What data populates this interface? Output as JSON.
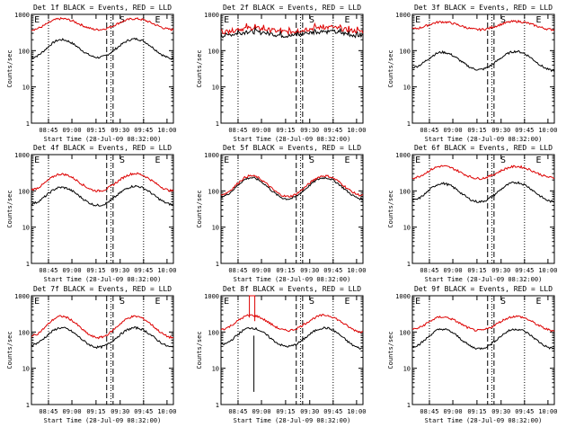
{
  "colors": {
    "events": "#000000",
    "lld": "#dd0000",
    "axis": "#000000"
  },
  "chart_data": [
    {
      "type": "line",
      "title": "Det 1f BLACK = Events, RED = LLD",
      "xlabel": "Start Time (28-Jul-09 08:32:00)",
      "ylabel": "Counts/sec",
      "yscale": "log",
      "ylim": [
        1,
        1000
      ],
      "ytick_labels": [
        "1",
        "10",
        "100",
        "1000"
      ],
      "xtick_labels": [
        "08:45",
        "09:00",
        "09:15",
        "09:30",
        "09:45",
        "10:00"
      ],
      "markers": [
        "E",
        "S",
        "E"
      ],
      "series": [
        {
          "name": "Events",
          "profile": "rise_fall",
          "values": [
            65,
            200,
            65,
            210,
            60
          ]
        },
        {
          "name": "LLD",
          "profile": "rise_fall",
          "values": [
            380,
            760,
            380,
            760,
            380
          ]
        }
      ]
    },
    {
      "type": "line",
      "title": "Det 2f BLACK = Events, RED = LLD",
      "xlabel": "Start Time (28-Jul-09 08:32:00)",
      "ylabel": "Counts/sec",
      "yscale": "log",
      "ylim": [
        1,
        1000
      ],
      "ytick_labels": [
        "1",
        "10",
        "100",
        "1000"
      ],
      "xtick_labels": [
        "08:45",
        "09:00",
        "09:15",
        "09:30",
        "09:45",
        "10:00"
      ],
      "markers": [
        "E",
        "S",
        "E"
      ],
      "series": [
        {
          "name": "Events",
          "profile": "flat_spiky",
          "values": [
            260,
            330,
            260,
            340,
            260
          ]
        },
        {
          "name": "LLD",
          "profile": "flat_spiky",
          "values": [
            330,
            420,
            330,
            440,
            340
          ]
        }
      ]
    },
    {
      "type": "line",
      "title": "Det 3f BLACK = Events, RED = LLD",
      "xlabel": "Start Time (28-Jul-09 08:32:00)",
      "ylabel": "Counts/sec",
      "yscale": "log",
      "ylim": [
        1,
        1000
      ],
      "ytick_labels": [
        "1",
        "10",
        "100",
        "1000"
      ],
      "xtick_labels": [
        "08:45",
        "09:00",
        "09:15",
        "09:30",
        "09:45",
        "10:00"
      ],
      "markers": [
        "E",
        "S",
        "E"
      ],
      "series": [
        {
          "name": "Events",
          "profile": "rise_fall",
          "values": [
            35,
            90,
            30,
            95,
            28
          ]
        },
        {
          "name": "LLD",
          "profile": "rise_fall",
          "values": [
            400,
            620,
            380,
            640,
            380
          ]
        }
      ]
    },
    {
      "type": "line",
      "title": "Det 4f BLACK = Events, RED = LLD",
      "xlabel": "Start Time (28-Jul-09 08:32:00)",
      "ylabel": "Counts/sec",
      "yscale": "log",
      "ylim": [
        1,
        1000
      ],
      "ytick_labels": [
        "1",
        "10",
        "100",
        "1000"
      ],
      "xtick_labels": [
        "08:45",
        "09:00",
        "09:15",
        "09:30",
        "09:45",
        "10:00"
      ],
      "markers": [
        "E",
        "S",
        "E"
      ],
      "series": [
        {
          "name": "Events",
          "profile": "rise_fall",
          "values": [
            45,
            125,
            40,
            135,
            42
          ]
        },
        {
          "name": "LLD",
          "profile": "rise_fall",
          "values": [
            110,
            290,
            100,
            300,
            100
          ]
        }
      ]
    },
    {
      "type": "line",
      "title": "Det 5f BLACK = Events, RED = LLD",
      "xlabel": "Start Time (28-Jul-09 08:32:00)",
      "ylabel": "Counts/sec",
      "yscale": "log",
      "ylim": [
        1,
        1000
      ],
      "ytick_labels": [
        "1",
        "10",
        "100",
        "1000"
      ],
      "xtick_labels": [
        "08:45",
        "09:00",
        "09:15",
        "09:30",
        "09:45",
        "10:00"
      ],
      "markers": [
        "E",
        "S",
        "E"
      ],
      "series": [
        {
          "name": "Events",
          "profile": "rise_fall",
          "values": [
            70,
            230,
            60,
            230,
            60
          ]
        },
        {
          "name": "LLD",
          "profile": "rise_fall",
          "values": [
            80,
            260,
            70,
            260,
            75
          ]
        }
      ]
    },
    {
      "type": "line",
      "title": "Det 6f BLACK = Events, RED = LLD",
      "xlabel": "Start Time (28-Jul-09 08:32:00)",
      "ylabel": "Counts/sec",
      "yscale": "log",
      "ylim": [
        1,
        1000
      ],
      "ytick_labels": [
        "1",
        "10",
        "100",
        "1000"
      ],
      "xtick_labels": [
        "08:45",
        "09:00",
        "09:15",
        "09:30",
        "09:45",
        "10:00"
      ],
      "markers": [
        "E",
        "S",
        "E"
      ],
      "series": [
        {
          "name": "Events",
          "profile": "rise_fall",
          "values": [
            55,
            160,
            50,
            170,
            50
          ]
        },
        {
          "name": "LLD",
          "profile": "rise_fall",
          "values": [
            230,
            480,
            220,
            470,
            230
          ]
        }
      ]
    },
    {
      "type": "line",
      "title": "Det 7f BLACK = Events, RED = LLD",
      "xlabel": "Start Time (28-Jul-09 08:32:00)",
      "ylabel": "Counts/sec",
      "yscale": "log",
      "ylim": [
        1,
        1000
      ],
      "ytick_labels": [
        "1",
        "10",
        "100",
        "1000"
      ],
      "xtick_labels": [
        "08:45",
        "09:00",
        "09:15",
        "09:30",
        "09:45",
        "10:00"
      ],
      "markers": [
        "E",
        "S",
        "E"
      ],
      "series": [
        {
          "name": "Events",
          "profile": "rise_fall",
          "values": [
            45,
            130,
            38,
            130,
            38
          ]
        },
        {
          "name": "LLD",
          "profile": "rise_fall",
          "values": [
            80,
            270,
            70,
            270,
            70
          ]
        }
      ]
    },
    {
      "type": "line",
      "title": "Det 8f BLACK = Events, RED = LLD",
      "xlabel": "Start Time (28-Jul-09 08:32:00)",
      "ylabel": "Counts/sec",
      "yscale": "log",
      "ylim": [
        1,
        1000
      ],
      "ytick_labels": [
        "1",
        "10",
        "100",
        "1000"
      ],
      "xtick_labels": [
        "08:45",
        "09:00",
        "09:15",
        "09:30",
        "09:45",
        "10:00"
      ],
      "markers": [
        "E",
        "S",
        "E"
      ],
      "series": [
        {
          "name": "Events",
          "profile": "rise_fall_spike",
          "values": [
            45,
            130,
            40,
            130,
            35
          ]
        },
        {
          "name": "LLD",
          "profile": "rise_fall_spike",
          "values": [
            120,
            290,
            110,
            290,
            100
          ]
        }
      ]
    },
    {
      "type": "line",
      "title": "Det 9f BLACK = Events, RED = LLD",
      "xlabel": "Start Time (28-Jul-09 08:32:00)",
      "ylabel": "Counts/sec",
      "yscale": "log",
      "ylim": [
        1,
        1000
      ],
      "ytick_labels": [
        "1",
        "10",
        "100",
        "1000"
      ],
      "xtick_labels": [
        "08:45",
        "09:00",
        "09:15",
        "09:30",
        "09:45",
        "10:00"
      ],
      "markers": [
        "E",
        "S",
        "E"
      ],
      "series": [
        {
          "name": "Events",
          "profile": "rise_fall",
          "values": [
            40,
            120,
            35,
            120,
            35
          ]
        },
        {
          "name": "LLD",
          "profile": "rise_fall",
          "values": [
            120,
            260,
            110,
            270,
            110
          ]
        }
      ]
    }
  ]
}
